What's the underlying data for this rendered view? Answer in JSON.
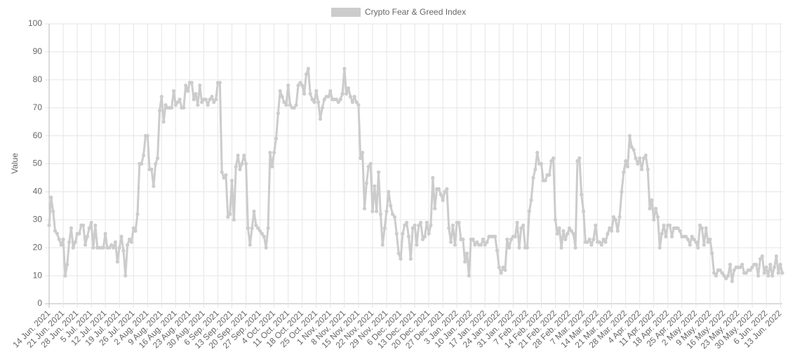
{
  "chart_data": {
    "type": "line",
    "y_label": "Value",
    "legend": "top",
    "grid": true,
    "ylim": [
      0,
      100
    ],
    "yticks": [
      0,
      10,
      20,
      30,
      40,
      50,
      60,
      70,
      80,
      90,
      100
    ],
    "categories": [
      "14 Jun. 2021",
      null,
      null,
      null,
      null,
      null,
      null,
      "21 Jun. 2021",
      null,
      null,
      null,
      null,
      null,
      null,
      "28 Jun. 2021",
      null,
      null,
      null,
      null,
      null,
      null,
      "5 Jul. 2021",
      null,
      null,
      null,
      null,
      null,
      null,
      "12 Jul. 2021",
      null,
      null,
      null,
      null,
      null,
      null,
      "19 Jul. 2021",
      null,
      null,
      null,
      null,
      null,
      null,
      "26 Jul. 2021",
      null,
      null,
      null,
      null,
      null,
      null,
      "2 Aug. 2021",
      null,
      null,
      null,
      null,
      null,
      null,
      "9 Aug. 2021",
      null,
      null,
      null,
      null,
      null,
      null,
      "16 Aug. 2021",
      null,
      null,
      null,
      null,
      null,
      null,
      "23 Aug. 2021",
      null,
      null,
      null,
      null,
      null,
      null,
      "30 Aug. 2021",
      null,
      null,
      null,
      null,
      null,
      null,
      "6 Sep. 2021",
      null,
      null,
      null,
      null,
      null,
      null,
      "13 Sep. 2021",
      null,
      null,
      null,
      null,
      null,
      null,
      "20 Sep. 2021",
      null,
      null,
      null,
      null,
      null,
      null,
      "27 Sep. 2021",
      null,
      null,
      null,
      null,
      null,
      null,
      "4 Oct. 2021",
      null,
      null,
      null,
      null,
      null,
      null,
      "11 Oct. 2021",
      null,
      null,
      null,
      null,
      null,
      null,
      "18 Oct. 2021",
      null,
      null,
      null,
      null,
      null,
      null,
      "25 Oct. 2021",
      null,
      null,
      null,
      null,
      null,
      null,
      "1 Nov. 2021",
      null,
      null,
      null,
      null,
      null,
      null,
      "8 Nov. 2021",
      null,
      null,
      null,
      null,
      null,
      null,
      "15 Nov. 2021",
      null,
      null,
      null,
      null,
      null,
      null,
      "22 Nov. 2021",
      null,
      null,
      null,
      null,
      null,
      null,
      "29 Nov. 2021",
      null,
      null,
      null,
      null,
      null,
      null,
      "6 Dec. 2021",
      null,
      null,
      null,
      null,
      null,
      null,
      "13 Dec. 2021",
      null,
      null,
      null,
      null,
      null,
      null,
      "20 Dec. 2021",
      null,
      null,
      null,
      null,
      null,
      null,
      "27 Dec. 2021",
      null,
      null,
      null,
      null,
      null,
      null,
      "3 Jan. 2022",
      null,
      null,
      null,
      null,
      null,
      null,
      "10 Jan. 2022",
      null,
      null,
      null,
      null,
      null,
      null,
      "17 Jan. 2022",
      null,
      null,
      null,
      null,
      null,
      null,
      "24 Jan. 2022",
      null,
      null,
      null,
      null,
      null,
      null,
      "31 Jan. 2022",
      null,
      null,
      null,
      null,
      null,
      null,
      "7 Feb. 2022",
      null,
      null,
      null,
      null,
      null,
      null,
      "14 Feb. 2022",
      null,
      null,
      null,
      null,
      null,
      null,
      "21 Feb. 2022",
      null,
      null,
      null,
      null,
      null,
      null,
      "28 Feb. 2022",
      null,
      null,
      null,
      null,
      null,
      null,
      "7 Mar. 2022",
      null,
      null,
      null,
      null,
      null,
      null,
      "14 Mar. 2022",
      null,
      null,
      null,
      null,
      null,
      null,
      "21 Mar. 2022",
      null,
      null,
      null,
      null,
      null,
      null,
      "28 Mar. 2022",
      null,
      null,
      null,
      null,
      null,
      null,
      "4 Apr. 2022",
      null,
      null,
      null,
      null,
      null,
      null,
      "11 Apr. 2022",
      null,
      null,
      null,
      null,
      null,
      null,
      "18 Apr. 2022",
      null,
      null,
      null,
      null,
      null,
      null,
      "25 Apr. 2022",
      null,
      null,
      null,
      null,
      null,
      null,
      "2 May. 2022",
      null,
      null,
      null,
      null,
      null,
      null,
      "9 May. 2022",
      null,
      null,
      null,
      null,
      null,
      null,
      "16 May. 2022",
      null,
      null,
      null,
      null,
      null,
      null,
      "23 May. 2022",
      null,
      null,
      null,
      null,
      null,
      null,
      "30 May. 2022",
      null,
      null,
      null,
      null,
      null,
      null,
      "6 Jun. 2022",
      null,
      null,
      null,
      null,
      null,
      null,
      "13 Jun. 2022",
      null
    ],
    "series": [
      {
        "name": "Crypto Fear & Greed Index",
        "color": "#cccccc",
        "values": [
          28,
          38,
          33,
          26,
          25,
          23,
          21,
          23,
          10,
          14,
          22,
          27,
          20,
          22,
          25,
          25,
          28,
          28,
          21,
          24,
          27,
          29,
          20,
          28,
          20,
          20,
          20,
          20,
          25,
          20,
          20,
          21,
          20,
          22,
          15,
          20,
          24,
          19,
          10,
          21,
          23,
          22,
          27,
          26,
          32,
          50,
          50,
          53,
          60,
          60,
          48,
          48,
          42,
          50,
          52,
          69,
          74,
          65,
          71,
          70,
          70,
          70,
          76,
          71,
          72,
          73,
          70,
          70,
          78,
          76,
          79,
          79,
          73,
          75,
          71,
          78,
          72,
          73,
          73,
          71,
          73,
          74,
          72,
          73,
          79,
          79,
          47,
          45,
          46,
          31,
          32,
          44,
          30,
          49,
          53,
          48,
          50,
          53,
          50,
          27,
          21,
          27,
          33,
          28,
          27,
          26,
          25,
          24,
          20,
          27,
          54,
          49,
          54,
          59,
          68,
          76,
          74,
          72,
          71,
          78,
          71,
          70,
          70,
          71,
          78,
          79,
          78,
          75,
          82,
          84,
          75,
          73,
          72,
          76,
          72,
          66,
          70,
          73,
          74,
          74,
          76,
          73,
          73,
          73,
          72,
          73,
          75,
          84,
          75,
          77,
          74,
          72,
          74,
          72,
          71,
          52,
          54,
          34,
          43,
          49,
          50,
          33,
          42,
          33,
          47,
          32,
          21,
          27,
          33,
          40,
          35,
          32,
          31,
          25,
          18,
          16,
          25,
          28,
          29,
          24,
          16,
          27,
          28,
          21,
          28,
          29,
          23,
          24,
          29,
          25,
          28,
          45,
          34,
          41,
          41,
          39,
          37,
          40,
          41,
          27,
          22,
          28,
          21,
          29,
          29,
          23,
          23,
          15,
          18,
          10,
          23,
          23,
          21,
          22,
          21,
          21,
          23,
          21,
          22,
          24,
          24,
          24,
          24,
          19,
          13,
          11,
          13,
          12,
          23,
          20,
          23,
          24,
          24,
          29,
          20,
          27,
          28,
          20,
          20,
          33,
          37,
          45,
          48,
          54,
          50,
          50,
          44,
          44,
          46,
          46,
          51,
          52,
          30,
          25,
          27,
          20,
          26,
          23,
          25,
          27,
          26,
          25,
          20,
          51,
          52,
          39,
          33,
          22,
          22,
          23,
          21,
          23,
          28,
          22,
          22,
          21,
          23,
          22,
          25,
          27,
          26,
          31,
          30,
          26,
          31,
          40,
          47,
          51,
          49,
          60,
          56,
          55,
          52,
          50,
          52,
          48,
          52,
          53,
          48,
          34,
          37,
          30,
          34,
          31,
          20,
          25,
          28,
          24,
          28,
          28,
          24,
          27,
          27,
          27,
          26,
          24,
          24,
          24,
          23,
          21,
          24,
          23,
          22,
          20,
          28,
          27,
          21,
          27,
          22,
          23,
          18,
          11,
          10,
          12,
          12,
          11,
          10,
          9,
          10,
          14,
          8,
          12,
          13,
          13,
          13,
          14,
          11,
          11,
          12,
          12,
          13,
          14,
          14,
          10,
          16,
          17,
          11,
          13,
          10,
          14,
          10,
          13,
          17,
          11,
          14,
          11
        ]
      }
    ]
  }
}
